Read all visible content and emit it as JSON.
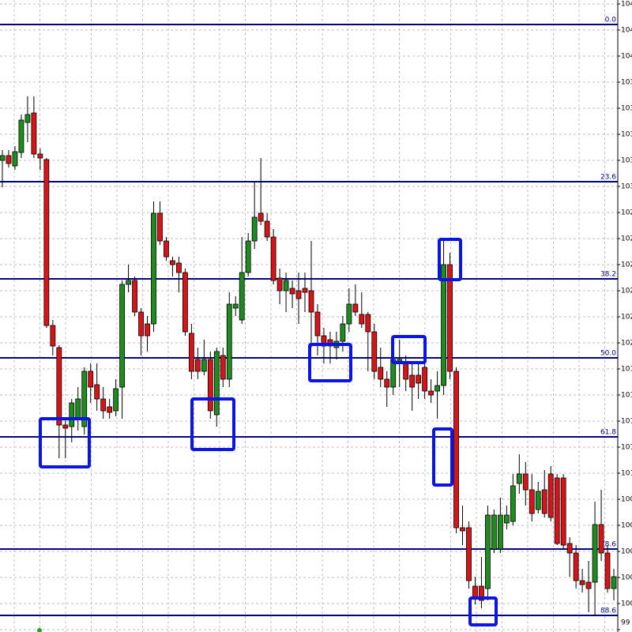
{
  "chart_data": {
    "type": "candlestick",
    "up_color": "#1e8c1e",
    "down_color": "#d81418",
    "level_color": "#000080",
    "grid": true,
    "ylim": [
      99.804,
      104.604
    ],
    "yticks": [
      {
        "value": 104.574,
        "label": "104"
      },
      {
        "value": 104.376,
        "label": "104"
      },
      {
        "value": 104.178,
        "label": "104"
      },
      {
        "value": 103.98,
        "label": "103"
      },
      {
        "value": 103.782,
        "label": "103"
      },
      {
        "value": 103.584,
        "label": "103"
      },
      {
        "value": 103.386,
        "label": "103"
      },
      {
        "value": 103.188,
        "label": "103"
      },
      {
        "value": 102.99,
        "label": "102"
      },
      {
        "value": 102.792,
        "label": "102"
      },
      {
        "value": 102.594,
        "label": "102"
      },
      {
        "value": 102.396,
        "label": "102"
      },
      {
        "value": 102.198,
        "label": "102"
      },
      {
        "value": 102.0,
        "label": "102"
      },
      {
        "value": 101.802,
        "label": "101"
      },
      {
        "value": 101.604,
        "label": "101"
      },
      {
        "value": 101.406,
        "label": "101"
      },
      {
        "value": 101.208,
        "label": "101"
      },
      {
        "value": 101.01,
        "label": "101"
      },
      {
        "value": 100.812,
        "label": "100"
      },
      {
        "value": 100.614,
        "label": "100"
      },
      {
        "value": 100.416,
        "label": "100"
      },
      {
        "value": 100.218,
        "label": "100"
      },
      {
        "value": 100.02,
        "label": "100"
      },
      {
        "value": 99.822,
        "label": "99"
      }
    ],
    "levels": [
      {
        "label": "0.0",
        "value": 104.418
      },
      {
        "label": "23.6",
        "value": 103.224
      },
      {
        "label": "38.2",
        "value": 102.486
      },
      {
        "label": "50.0",
        "value": 101.886
      },
      {
        "label": "61.8",
        "value": 101.286
      },
      {
        "label": "78.6",
        "value": 100.434
      },
      {
        "label": "88.6",
        "value": 99.93
      }
    ],
    "open": [
      103.386,
      103.422,
      103.344,
      103.446,
      103.674,
      103.746,
      103.434,
      103.392,
      102.132,
      101.964,
      101.376,
      101.364,
      101.424,
      101.364,
      101.784,
      101.682,
      101.574,
      101.514,
      101.484,
      101.664,
      102.444,
      102.474,
      102.234,
      102.144,
      102.144,
      102.984,
      102.774,
      102.624,
      102.606,
      102.534,
      102.072,
      101.874,
      101.784,
      101.874,
      101.454,
      101.904,
      101.724,
      102.264,
      102.174,
      102.534,
      102.774,
      102.984,
      102.924,
      102.804,
      102.492,
      102.396,
      102.414,
      102.396,
      102.414,
      102.396,
      102.234,
      102.054,
      102.024,
      101.964,
      102.012,
      102.144,
      102.294,
      102.216,
      102.216,
      102.084,
      101.814,
      101.724,
      101.664,
      101.844,
      101.844,
      101.754,
      101.754,
      101.814,
      101.634,
      101.634,
      101.676,
      102.594,
      101.784,
      100.596,
      100.596,
      100.152,
      100.152,
      100.134,
      100.434,
      100.434,
      100.632,
      100.644,
      100.932,
      101.004,
      100.884,
      100.734,
      100.884,
      101.004,
      100.974,
      100.974,
      100.476,
      100.404,
      100.194,
      100.182,
      100.182,
      100.62,
      100.404,
      100.134
    ],
    "high": [
      103.464,
      103.464,
      103.494,
      103.734,
      103.872,
      103.872,
      103.476,
      103.404,
      102.174,
      101.982,
      101.424,
      101.574,
      101.664,
      101.814,
      101.844,
      101.844,
      101.664,
      101.574,
      101.724,
      102.474,
      102.594,
      102.504,
      102.264,
      102.204,
      103.074,
      103.074,
      102.804,
      102.654,
      102.654,
      102.564,
      102.144,
      101.964,
      102.024,
      101.934,
      101.964,
      101.964,
      102.384,
      102.354,
      102.804,
      102.834,
      103.224,
      103.404,
      102.984,
      102.864,
      102.564,
      102.534,
      102.474,
      102.534,
      102.534,
      102.774,
      102.294,
      102.114,
      102.084,
      102.084,
      102.204,
      102.414,
      102.444,
      102.384,
      102.234,
      102.144,
      101.964,
      101.784,
      101.964,
      102.024,
      101.904,
      101.844,
      101.844,
      101.874,
      101.724,
      101.784,
      102.774,
      102.684,
      101.814,
      100.764,
      100.644,
      100.224,
      100.374,
      100.764,
      100.734,
      100.824,
      100.764,
      101.004,
      101.154,
      101.094,
      101.004,
      100.944,
      101.034,
      101.064,
      101.004,
      101.004,
      100.524,
      100.464,
      100.284,
      100.344,
      100.794,
      100.884,
      100.464,
      100.284
    ],
    "low": [
      103.182,
      103.332,
      103.314,
      103.404,
      103.524,
      103.404,
      103.314,
      102.114,
      101.904,
      101.124,
      101.124,
      101.244,
      101.334,
      101.304,
      101.544,
      101.484,
      101.424,
      101.424,
      101.442,
      101.424,
      102.384,
      102.204,
      101.904,
      101.934,
      102.084,
      102.744,
      102.624,
      102.504,
      102.384,
      102.054,
      101.724,
      101.724,
      101.754,
      101.424,
      101.364,
      101.664,
      101.664,
      102.204,
      102.144,
      102.504,
      102.714,
      102.894,
      102.774,
      102.444,
      102.294,
      102.234,
      102.264,
      102.144,
      102.234,
      101.964,
      101.904,
      101.844,
      101.844,
      101.874,
      101.934,
      102.084,
      102.204,
      102.114,
      101.784,
      101.724,
      101.664,
      101.514,
      101.604,
      101.664,
      101.634,
      101.484,
      101.574,
      101.574,
      101.544,
      101.424,
      101.604,
      101.724,
      100.554,
      100.464,
      100.134,
      100.014,
      99.984,
      100.044,
      100.404,
      100.404,
      100.584,
      100.614,
      100.854,
      100.764,
      100.644,
      100.704,
      100.674,
      100.644,
      100.464,
      100.434,
      100.224,
      100.134,
      100.104,
      99.954,
      99.924,
      100.344,
      100.104,
      100.044
    ],
    "close": [
      103.422,
      103.362,
      103.452,
      103.692,
      103.734,
      103.434,
      103.404,
      102.132,
      101.976,
      101.376,
      101.352,
      101.544,
      101.574,
      101.784,
      101.664,
      101.574,
      101.484,
      101.472,
      101.652,
      102.444,
      102.474,
      102.234,
      102.054,
      102.054,
      102.984,
      102.774,
      102.654,
      102.594,
      102.534,
      102.084,
      101.784,
      101.784,
      101.874,
      101.484,
      101.934,
      101.724,
      102.294,
      102.294,
      102.534,
      102.774,
      102.954,
      102.924,
      102.804,
      102.474,
      102.396,
      102.474,
      102.372,
      102.336,
      102.384,
      102.234,
      102.054,
      101.976,
      101.976,
      102.012,
      102.144,
      102.294,
      102.234,
      102.144,
      102.084,
      101.784,
      101.724,
      101.664,
      101.874,
      101.874,
      101.724,
      101.664,
      101.694,
      101.634,
      101.604,
      101.676,
      102.594,
      101.784,
      100.596,
      100.572,
      100.194,
      100.056,
      100.044,
      100.692,
      100.692,
      100.692,
      100.692,
      100.914,
      101.004,
      100.884,
      100.704,
      100.872,
      100.704,
      100.674,
      100.476,
      100.464,
      100.404,
      100.194,
      100.164,
      100.134,
      100.62,
      100.404,
      100.134,
      100.224
    ]
  }
}
